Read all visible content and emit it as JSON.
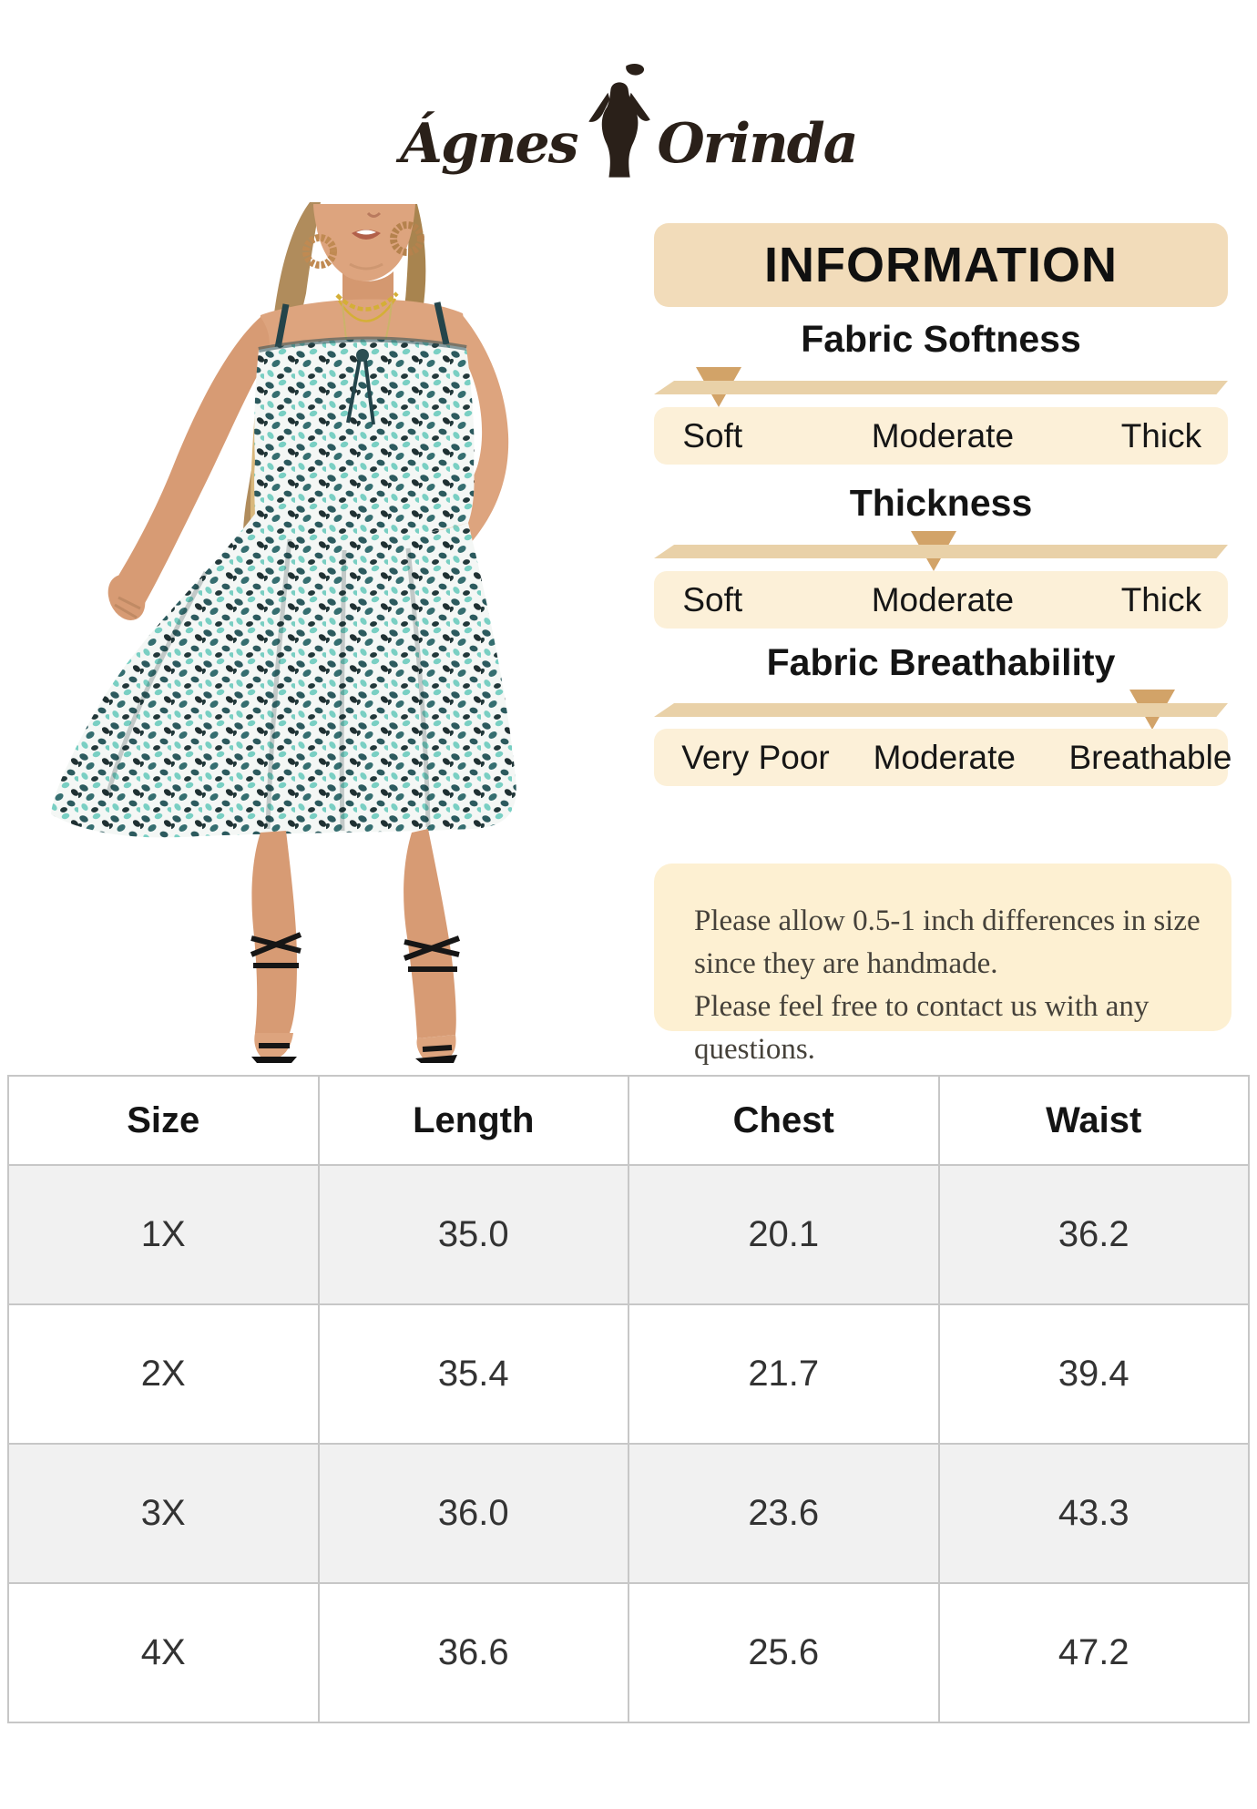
{
  "brand": {
    "logo_left": "Ágnes",
    "logo_right": "Orinda",
    "logo_color": "#2a2019"
  },
  "product_photo": {
    "alt": "Model wearing a teal leopard print sleeveless cami midi dress with black strappy heels"
  },
  "info_panel": {
    "header": "INFORMATION",
    "scales": [
      {
        "title": "Fabric Softness",
        "labels": [
          "Soft",
          "Moderate",
          "Thick"
        ],
        "selected": "Soft",
        "arrow_left_pct": 11.2
      },
      {
        "title": "Thickness",
        "labels": [
          "Soft",
          "Moderate",
          "Thick"
        ],
        "selected": "Moderate",
        "arrow_left_pct": 48.6
      },
      {
        "title": "Fabric Breathability",
        "labels": [
          "Very Poor",
          "Moderate",
          "Breathable"
        ],
        "selected": "Breathable",
        "arrow_left_pct": 86.6
      }
    ],
    "note_lines": [
      "Please allow 0.5-1 inch differences in size",
      "since they are handmade.",
      "Please feel free to contact us with any questions."
    ]
  },
  "size_table": {
    "headers": [
      "Size",
      "Length",
      "Chest",
      "Waist"
    ],
    "rows": [
      {
        "size": "1X",
        "values": [
          "35.0",
          "20.1",
          "36.2"
        ]
      },
      {
        "size": "2X",
        "values": [
          "35.4",
          "21.7",
          "39.4"
        ]
      },
      {
        "size": "3X",
        "values": [
          "36.0",
          "23.6",
          "43.3"
        ]
      },
      {
        "size": "4X",
        "values": [
          "36.6",
          "25.6",
          "47.2"
        ]
      }
    ]
  },
  "colors": {
    "header_bg": "#f2dcba",
    "scale_box_bg": "#fcf0d8",
    "ribbon": "#e9d1a8",
    "arrow": "#d2a368",
    "note_bg": "#fdf0d2",
    "table_alt_row": "#f1f1f1",
    "table_border": "#c7c7c7",
    "dress_teal": "#2c5a5e",
    "dress_aqua": "#79cfc3"
  }
}
